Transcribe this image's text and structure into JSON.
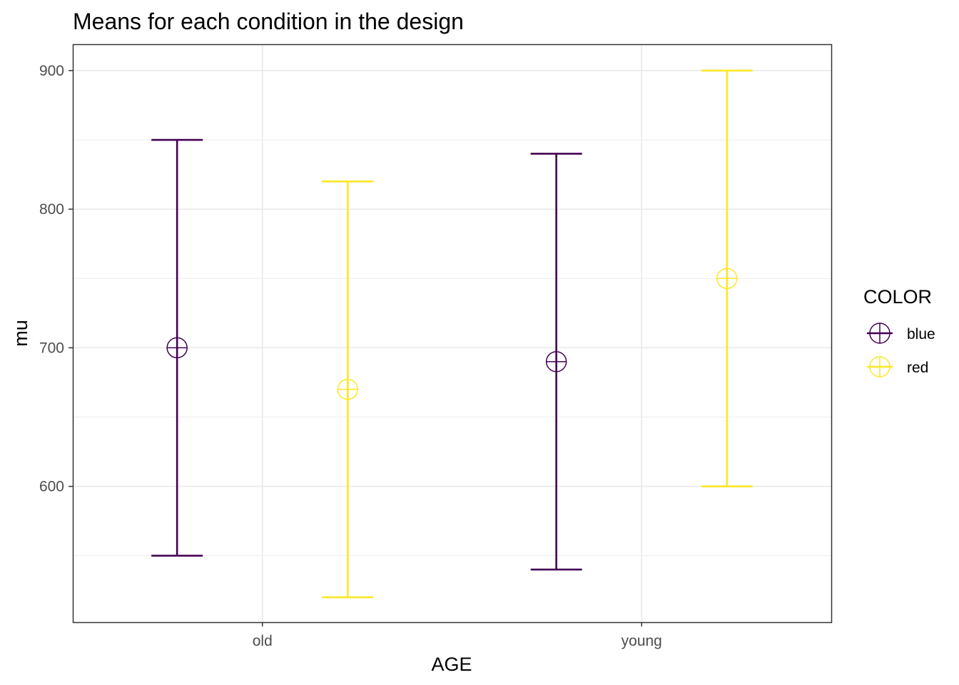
{
  "chart_data": {
    "type": "errorbar",
    "title": "Means for each condition in the design",
    "xlabel": "AGE",
    "ylabel": "mu",
    "categories": [
      "old",
      "young"
    ],
    "ylim": [
      502,
      919
    ],
    "yticks": [
      600,
      700,
      800,
      900
    ],
    "grid": true,
    "legend": {
      "title": "COLOR",
      "position": "right"
    },
    "series": [
      {
        "name": "blue",
        "color": "#440154",
        "points": [
          {
            "x": "old",
            "mean": 700,
            "lower": 550,
            "upper": 850
          },
          {
            "x": "young",
            "mean": 690,
            "lower": 540,
            "upper": 840
          }
        ]
      },
      {
        "name": "red",
        "color": "#FDE725",
        "points": [
          {
            "x": "old",
            "mean": 670,
            "lower": 520,
            "upper": 820
          },
          {
            "x": "young",
            "mean": 750,
            "lower": 600,
            "upper": 900
          }
        ]
      }
    ]
  }
}
